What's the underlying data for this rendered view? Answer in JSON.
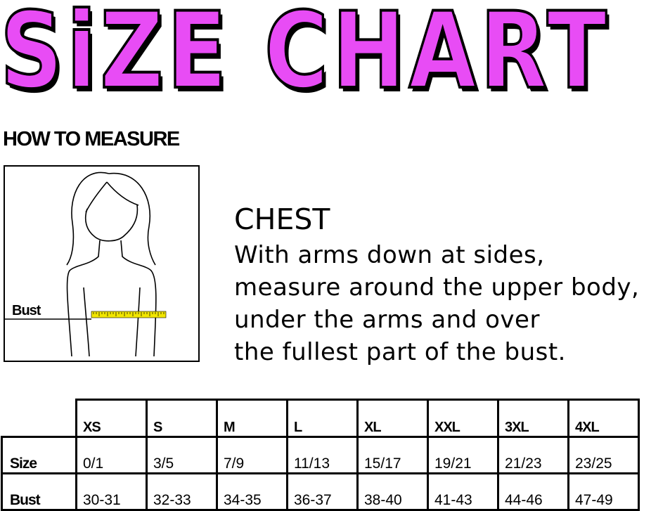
{
  "title": "SiZE CHART",
  "accent_color": "#e84cf5",
  "how_to_measure": "HOW TO MEASURE",
  "illustration": {
    "label": "Bust",
    "tape_color": "#f2e600"
  },
  "chest": {
    "heading": "CHEST",
    "lines": [
      "With arms down at sides,",
      "measure around the upper body,",
      "under the arms and over",
      "the fullest part of the bust."
    ]
  },
  "table": {
    "headers": [
      "XS",
      "S",
      "M",
      "L",
      "XL",
      "XXL",
      "3XL",
      "4XL"
    ],
    "rows": [
      {
        "label": "Size",
        "values": [
          "0/1",
          "3/5",
          "7/9",
          "11/13",
          "15/17",
          "19/21",
          "21/23",
          "23/25"
        ]
      },
      {
        "label": "Bust",
        "values": [
          "30-31",
          "32-33",
          "34-35",
          "36-37",
          "38-40",
          "41-43",
          "44-46",
          "47-49"
        ]
      }
    ]
  }
}
